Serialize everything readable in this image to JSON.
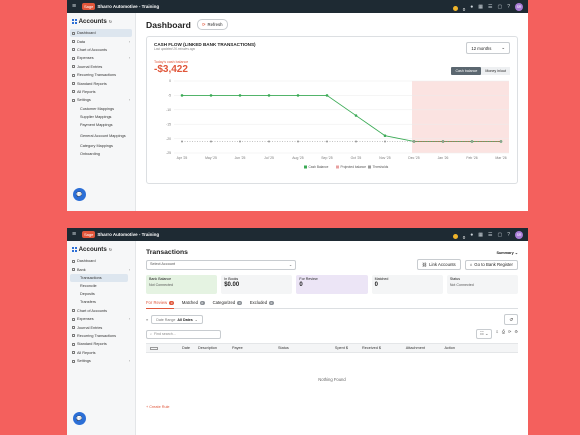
{
  "brand_color": "#e0563a",
  "accent": "#2c6fd6",
  "screens": {
    "dashboard": {
      "topbar": {
        "logo_badge": "Sage",
        "company": "Sharro Automotive - Training",
        "credits": "0",
        "avatar": "SR"
      },
      "sidebar": {
        "title": "Accounts",
        "items": [
          {
            "label": "Dashboard",
            "active": true
          },
          {
            "label": "Data",
            "chevron": true
          },
          {
            "label": "Chart of Accounts"
          },
          {
            "label": "Expenses",
            "chevron": true
          },
          {
            "label": "Journal Entries"
          },
          {
            "label": "Recurring Transactions"
          },
          {
            "label": "Standard Reports"
          },
          {
            "label": "All Reports"
          },
          {
            "label": "Settings",
            "chevron": true
          }
        ],
        "subitems": [
          "Customer Mappings",
          "Supplier Mappings",
          "Payment Mappings",
          "General Account Mappings",
          "Category Mappings",
          "Onboarding"
        ]
      },
      "header": {
        "title": "Dashboard",
        "refresh_label": "Refresh"
      },
      "cashflow": {
        "title": "CASH FLOW (LINKED BANK TRANSACTIONS)",
        "subtitle": "Last updated 26 minutes ago",
        "range_label": "12 months",
        "today_label": "Today's cash balance",
        "today_value": "-$3,422",
        "toggle_balance": "Cash balance",
        "toggle_money": "Money in/out"
      }
    },
    "transactions": {
      "topbar": {
        "logo_badge": "Sage",
        "company": "Sharro Automotive - Training",
        "credits": "0",
        "avatar": "SR"
      },
      "sidebar": {
        "title": "Accounts",
        "items_top": [
          {
            "label": "Dashboard"
          },
          {
            "label": "Bank",
            "chevron": true
          }
        ],
        "bank_sub": [
          {
            "label": "Transactions",
            "active": true
          },
          {
            "label": "Reconcile"
          },
          {
            "label": "Deposits"
          },
          {
            "label": "Transfers"
          }
        ],
        "items_bottom": [
          {
            "label": "Chart of Accounts"
          },
          {
            "label": "Expenses",
            "chevron": true
          },
          {
            "label": "Journal Entries"
          },
          {
            "label": "Recurring Transactions"
          },
          {
            "label": "Standard Reports"
          },
          {
            "label": "All Reports"
          },
          {
            "label": "Settings",
            "chevron": true
          }
        ]
      },
      "header": {
        "title": "Transactions",
        "summary_label": "Summary"
      },
      "select_account_placeholder": "Select Account",
      "link_accounts": "Link Accounts",
      "go_to_register": "Go to Bank Register",
      "summary_cards": [
        {
          "label": "Bank Balance",
          "value": "Not Connected",
          "bg": "#e5f3e2"
        },
        {
          "label": "In Books",
          "value": "$0.00",
          "bg": "#f4f5f6"
        },
        {
          "label": "For Review",
          "value": "0",
          "bg": "#ece5f6"
        },
        {
          "label": "Matched",
          "value": "0",
          "bg": "#f4f5f6"
        },
        {
          "label": "Status",
          "value": "Not Connected",
          "bg": "#f4f5f6"
        }
      ],
      "tabs": [
        {
          "label": "For Review",
          "count": "0",
          "active": true
        },
        {
          "label": "Matched",
          "count": "0"
        },
        {
          "label": "Categorized",
          "count": "0"
        },
        {
          "label": "Excluded",
          "count": "0"
        }
      ],
      "date_range_label": "Date Range",
      "date_range_value": "All Dates",
      "search_placeholder": "Find search...",
      "columns": [
        "Date",
        "Description",
        "Payee",
        "Status",
        "Spent $",
        "Received $",
        "Attachment",
        "Action"
      ],
      "empty_text": "Nothing Found",
      "create_rule": "Create Rule"
    }
  },
  "chart_data": {
    "type": "line",
    "title": "CASH FLOW (LINKED BANK TRANSACTIONS)",
    "x": [
      "Apr '25",
      "May '25",
      "Jun '25",
      "Jul '25",
      "Aug '25",
      "Sep '25",
      "Oct '25",
      "Nov '25",
      "Dec '25",
      "Jan '26",
      "Feb '26",
      "Mar '26"
    ],
    "ylim": [
      -25,
      0
    ],
    "yticks": [
      0,
      -5,
      -10,
      -15,
      -20,
      -25
    ],
    "series": [
      {
        "name": "Cash Balance",
        "values": [
          -5,
          -5,
          -5,
          -5,
          -5,
          -5,
          -12,
          -19,
          -21,
          -21,
          -21,
          -21
        ],
        "color": "#3aaa55"
      },
      {
        "name": "Projected balance",
        "values": [
          null,
          null,
          null,
          null,
          null,
          null,
          null,
          null,
          -21,
          -21,
          -21,
          -21
        ],
        "color": "#e0563a"
      },
      {
        "name": "Thresholds",
        "values": [
          -21,
          -21,
          -21,
          -21,
          -21,
          -21,
          -21,
          -21,
          -21,
          -21,
          -21,
          -21
        ],
        "color": "#888888"
      }
    ],
    "shaded_from": "Dec '25",
    "grid": true
  }
}
